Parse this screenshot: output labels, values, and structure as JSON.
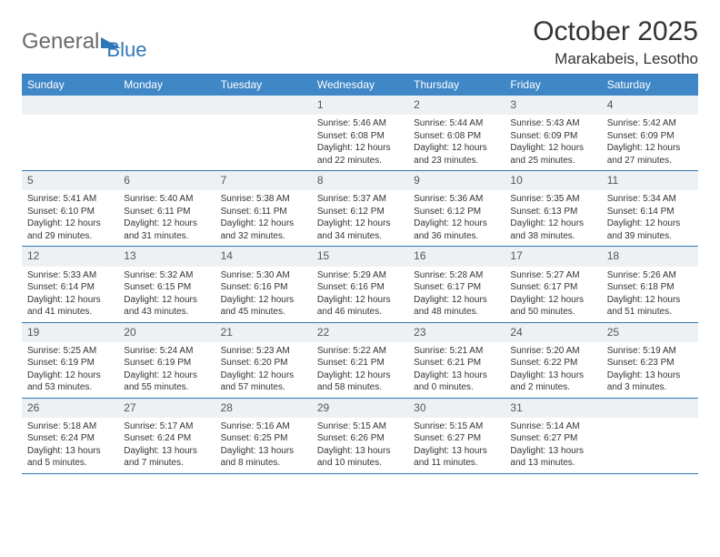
{
  "brand": {
    "part1": "General",
    "part2": "Blue"
  },
  "title": "October 2025",
  "location": "Marakabeis, Lesotho",
  "colors": {
    "accent": "#2f76b8",
    "header_bg": "#3f87c7",
    "daynum_bg": "#eef1f4",
    "text": "#333333",
    "logo_gray": "#6a6a6a"
  },
  "weekdays": [
    "Sunday",
    "Monday",
    "Tuesday",
    "Wednesday",
    "Thursday",
    "Friday",
    "Saturday"
  ],
  "weeks": [
    [
      {
        "n": "",
        "sr": "",
        "ss": "",
        "dl": ""
      },
      {
        "n": "",
        "sr": "",
        "ss": "",
        "dl": ""
      },
      {
        "n": "",
        "sr": "",
        "ss": "",
        "dl": ""
      },
      {
        "n": "1",
        "sr": "Sunrise: 5:46 AM",
        "ss": "Sunset: 6:08 PM",
        "dl": "Daylight: 12 hours and 22 minutes."
      },
      {
        "n": "2",
        "sr": "Sunrise: 5:44 AM",
        "ss": "Sunset: 6:08 PM",
        "dl": "Daylight: 12 hours and 23 minutes."
      },
      {
        "n": "3",
        "sr": "Sunrise: 5:43 AM",
        "ss": "Sunset: 6:09 PM",
        "dl": "Daylight: 12 hours and 25 minutes."
      },
      {
        "n": "4",
        "sr": "Sunrise: 5:42 AM",
        "ss": "Sunset: 6:09 PM",
        "dl": "Daylight: 12 hours and 27 minutes."
      }
    ],
    [
      {
        "n": "5",
        "sr": "Sunrise: 5:41 AM",
        "ss": "Sunset: 6:10 PM",
        "dl": "Daylight: 12 hours and 29 minutes."
      },
      {
        "n": "6",
        "sr": "Sunrise: 5:40 AM",
        "ss": "Sunset: 6:11 PM",
        "dl": "Daylight: 12 hours and 31 minutes."
      },
      {
        "n": "7",
        "sr": "Sunrise: 5:38 AM",
        "ss": "Sunset: 6:11 PM",
        "dl": "Daylight: 12 hours and 32 minutes."
      },
      {
        "n": "8",
        "sr": "Sunrise: 5:37 AM",
        "ss": "Sunset: 6:12 PM",
        "dl": "Daylight: 12 hours and 34 minutes."
      },
      {
        "n": "9",
        "sr": "Sunrise: 5:36 AM",
        "ss": "Sunset: 6:12 PM",
        "dl": "Daylight: 12 hours and 36 minutes."
      },
      {
        "n": "10",
        "sr": "Sunrise: 5:35 AM",
        "ss": "Sunset: 6:13 PM",
        "dl": "Daylight: 12 hours and 38 minutes."
      },
      {
        "n": "11",
        "sr": "Sunrise: 5:34 AM",
        "ss": "Sunset: 6:14 PM",
        "dl": "Daylight: 12 hours and 39 minutes."
      }
    ],
    [
      {
        "n": "12",
        "sr": "Sunrise: 5:33 AM",
        "ss": "Sunset: 6:14 PM",
        "dl": "Daylight: 12 hours and 41 minutes."
      },
      {
        "n": "13",
        "sr": "Sunrise: 5:32 AM",
        "ss": "Sunset: 6:15 PM",
        "dl": "Daylight: 12 hours and 43 minutes."
      },
      {
        "n": "14",
        "sr": "Sunrise: 5:30 AM",
        "ss": "Sunset: 6:16 PM",
        "dl": "Daylight: 12 hours and 45 minutes."
      },
      {
        "n": "15",
        "sr": "Sunrise: 5:29 AM",
        "ss": "Sunset: 6:16 PM",
        "dl": "Daylight: 12 hours and 46 minutes."
      },
      {
        "n": "16",
        "sr": "Sunrise: 5:28 AM",
        "ss": "Sunset: 6:17 PM",
        "dl": "Daylight: 12 hours and 48 minutes."
      },
      {
        "n": "17",
        "sr": "Sunrise: 5:27 AM",
        "ss": "Sunset: 6:17 PM",
        "dl": "Daylight: 12 hours and 50 minutes."
      },
      {
        "n": "18",
        "sr": "Sunrise: 5:26 AM",
        "ss": "Sunset: 6:18 PM",
        "dl": "Daylight: 12 hours and 51 minutes."
      }
    ],
    [
      {
        "n": "19",
        "sr": "Sunrise: 5:25 AM",
        "ss": "Sunset: 6:19 PM",
        "dl": "Daylight: 12 hours and 53 minutes."
      },
      {
        "n": "20",
        "sr": "Sunrise: 5:24 AM",
        "ss": "Sunset: 6:19 PM",
        "dl": "Daylight: 12 hours and 55 minutes."
      },
      {
        "n": "21",
        "sr": "Sunrise: 5:23 AM",
        "ss": "Sunset: 6:20 PM",
        "dl": "Daylight: 12 hours and 57 minutes."
      },
      {
        "n": "22",
        "sr": "Sunrise: 5:22 AM",
        "ss": "Sunset: 6:21 PM",
        "dl": "Daylight: 12 hours and 58 minutes."
      },
      {
        "n": "23",
        "sr": "Sunrise: 5:21 AM",
        "ss": "Sunset: 6:21 PM",
        "dl": "Daylight: 13 hours and 0 minutes."
      },
      {
        "n": "24",
        "sr": "Sunrise: 5:20 AM",
        "ss": "Sunset: 6:22 PM",
        "dl": "Daylight: 13 hours and 2 minutes."
      },
      {
        "n": "25",
        "sr": "Sunrise: 5:19 AM",
        "ss": "Sunset: 6:23 PM",
        "dl": "Daylight: 13 hours and 3 minutes."
      }
    ],
    [
      {
        "n": "26",
        "sr": "Sunrise: 5:18 AM",
        "ss": "Sunset: 6:24 PM",
        "dl": "Daylight: 13 hours and 5 minutes."
      },
      {
        "n": "27",
        "sr": "Sunrise: 5:17 AM",
        "ss": "Sunset: 6:24 PM",
        "dl": "Daylight: 13 hours and 7 minutes."
      },
      {
        "n": "28",
        "sr": "Sunrise: 5:16 AM",
        "ss": "Sunset: 6:25 PM",
        "dl": "Daylight: 13 hours and 8 minutes."
      },
      {
        "n": "29",
        "sr": "Sunrise: 5:15 AM",
        "ss": "Sunset: 6:26 PM",
        "dl": "Daylight: 13 hours and 10 minutes."
      },
      {
        "n": "30",
        "sr": "Sunrise: 5:15 AM",
        "ss": "Sunset: 6:27 PM",
        "dl": "Daylight: 13 hours and 11 minutes."
      },
      {
        "n": "31",
        "sr": "Sunrise: 5:14 AM",
        "ss": "Sunset: 6:27 PM",
        "dl": "Daylight: 13 hours and 13 minutes."
      },
      {
        "n": "",
        "sr": "",
        "ss": "",
        "dl": ""
      }
    ]
  ]
}
